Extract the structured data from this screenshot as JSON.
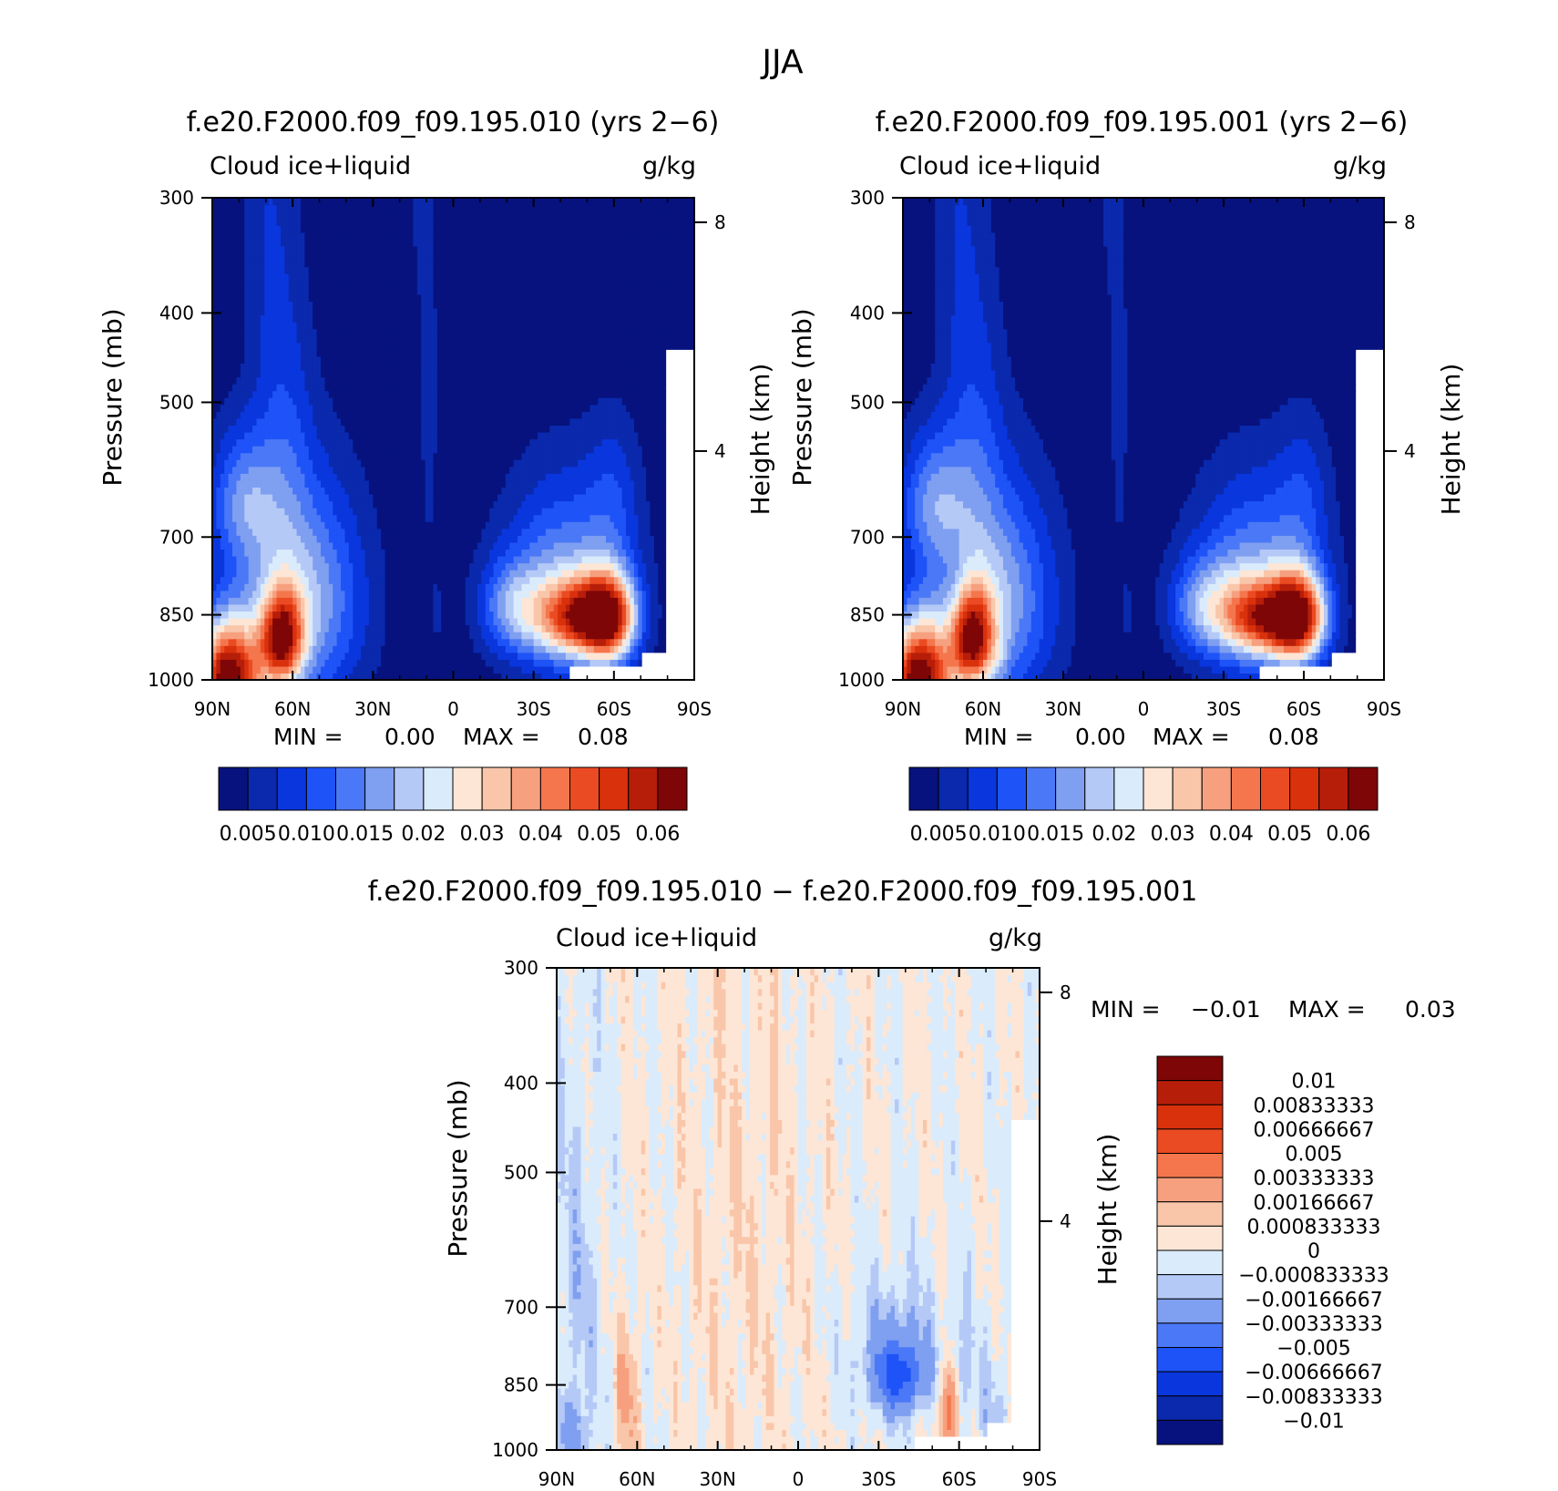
{
  "figure": {
    "title": "JJA"
  },
  "colormap": [
    "#07127e",
    "#0a29ad",
    "#0a36de",
    "#1e53f8",
    "#4b78f6",
    "#7f9ff0",
    "#b5c9f7",
    "#daebfb",
    "#fde6d6",
    "#f9c6aa",
    "#f6a07f",
    "#f5764d",
    "#eb4b22",
    "#d9310c",
    "#b71e0a",
    "#7e0606"
  ],
  "chart_data": [
    {
      "type": "heatmap",
      "title": "f.e20.F2000.f09_f09.195.010 (yrs 2−6)",
      "subtitle_left": "Cloud ice+liquid",
      "subtitle_right": "g/kg",
      "ylabel": "Pressure (mb)",
      "ylabel_right": "Height (km)",
      "x_ticks": [
        "90N",
        "60N",
        "30N",
        "0",
        "30S",
        "60S",
        "90S"
      ],
      "y_ticks": [
        "300",
        "400",
        "500",
        "700",
        "850",
        "1000"
      ],
      "y_right_ticks": [
        "8",
        "4"
      ],
      "xlim": [
        90,
        -90
      ],
      "ylim": [
        1000,
        300
      ],
      "min_label": "MIN =",
      "min_value": "0.00",
      "max_label": "MAX =",
      "max_value": "0.08",
      "colorbar_labels": [
        "0.005",
        "0.010",
        "0.015",
        "0.02",
        "0.03",
        "0.04",
        "0.05",
        "0.06"
      ],
      "field_max": 0.08
    },
    {
      "type": "heatmap",
      "title": "f.e20.F2000.f09_f09.195.001 (yrs 2−6)",
      "subtitle_left": "Cloud ice+liquid",
      "subtitle_right": "g/kg",
      "ylabel": "Pressure (mb)",
      "ylabel_right": "Height (km)",
      "x_ticks": [
        "90N",
        "60N",
        "30N",
        "0",
        "30S",
        "60S",
        "90S"
      ],
      "y_ticks": [
        "300",
        "400",
        "500",
        "700",
        "850",
        "1000"
      ],
      "y_right_ticks": [
        "8",
        "4"
      ],
      "xlim": [
        90,
        -90
      ],
      "ylim": [
        1000,
        300
      ],
      "min_label": "MIN =",
      "min_value": "0.00",
      "max_label": "MAX =",
      "max_value": "0.08",
      "colorbar_labels": [
        "0.005",
        "0.010",
        "0.015",
        "0.02",
        "0.03",
        "0.04",
        "0.05",
        "0.06"
      ],
      "field_max": 0.08
    },
    {
      "type": "heatmap",
      "title": "f.e20.F2000.f09_f09.195.010 − f.e20.F2000.f09_f09.195.001",
      "subtitle_left": "Cloud ice+liquid",
      "subtitle_right": "g/kg",
      "ylabel": "Pressure (mb)",
      "ylabel_right": "Height (km)",
      "x_ticks": [
        "90N",
        "60N",
        "30N",
        "0",
        "30S",
        "60S",
        "90S"
      ],
      "y_ticks": [
        "300",
        "400",
        "500",
        "700",
        "850",
        "1000"
      ],
      "y_right_ticks": [
        "8",
        "4"
      ],
      "xlim": [
        90,
        -90
      ],
      "ylim": [
        1000,
        300
      ],
      "min_label": "MIN =",
      "min_value": "−0.01",
      "max_label": "MAX =",
      "max_value": "0.03",
      "colorbar_labels": [
        "0.01",
        "0.00833333",
        "0.00666667",
        "0.005",
        "0.00333333",
        "0.00166667",
        "0.000833333",
        "0",
        "−0.000833333",
        "−0.00166667",
        "−0.00333333",
        "−0.005",
        "−0.00666667",
        "−0.00833333",
        "−0.01"
      ]
    }
  ]
}
